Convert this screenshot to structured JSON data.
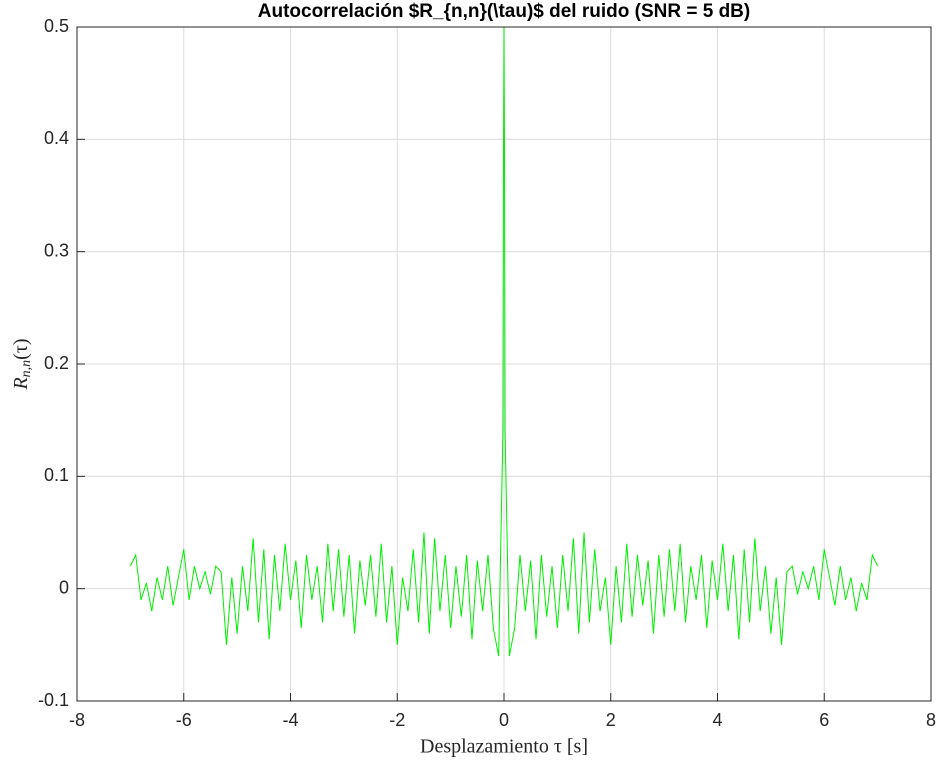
{
  "chart_data": {
    "type": "line",
    "title": "Autocorrelación $R_{n,n}(\\tau)$ del ruido (SNR = 5 dB)",
    "xlabel": "Desplazamiento τ [s]",
    "ylabel": [
      "R",
      "n,n",
      "(τ)"
    ],
    "color": "#00ee00",
    "grid": true,
    "xlim": [
      -8,
      8
    ],
    "xticks": [
      -8,
      -6,
      -4,
      -2,
      0,
      2,
      4,
      6,
      8
    ],
    "ylim": [
      -0.1,
      0.5
    ],
    "yticks": [
      -0.1,
      0,
      0.1,
      0.2,
      0.3,
      0.4,
      0.5
    ],
    "x": [
      -7.0,
      -6.9,
      -6.8,
      -6.7,
      -6.6,
      -6.5,
      -6.4,
      -6.3,
      -6.2,
      -6.1,
      -6.0,
      -5.9,
      -5.8,
      -5.7,
      -5.6,
      -5.5,
      -5.4,
      -5.3,
      -5.2,
      -5.1,
      -5.0,
      -4.9,
      -4.8,
      -4.7,
      -4.6,
      -4.5,
      -4.4,
      -4.3,
      -4.2,
      -4.1,
      -4.0,
      -3.9,
      -3.8,
      -3.7,
      -3.6,
      -3.5,
      -3.4,
      -3.3,
      -3.2,
      -3.1,
      -3.0,
      -2.9,
      -2.8,
      -2.7,
      -2.6,
      -2.5,
      -2.4,
      -2.3,
      -2.2,
      -2.1,
      -2.0,
      -1.9,
      -1.8,
      -1.7,
      -1.6,
      -1.5,
      -1.4,
      -1.3,
      -1.2,
      -1.1,
      -1.0,
      -0.9,
      -0.8,
      -0.7,
      -0.6,
      -0.5,
      -0.4,
      -0.3,
      -0.2,
      -0.1,
      -0.02,
      -0.01,
      0,
      0.01,
      0.02,
      0.1,
      0.2,
      0.3,
      0.4,
      0.5,
      0.6,
      0.7,
      0.8,
      0.9,
      1.0,
      1.1,
      1.2,
      1.3,
      1.4,
      1.5,
      1.6,
      1.7,
      1.8,
      1.9,
      2.0,
      2.1,
      2.2,
      2.3,
      2.4,
      2.5,
      2.6,
      2.7,
      2.8,
      2.9,
      3.0,
      3.1,
      3.2,
      3.3,
      3.4,
      3.5,
      3.6,
      3.7,
      3.8,
      3.9,
      4.0,
      4.1,
      4.2,
      4.3,
      4.4,
      4.5,
      4.6,
      4.7,
      4.8,
      4.9,
      5.0,
      5.1,
      5.2,
      5.3,
      5.4,
      5.5,
      5.6,
      5.7,
      5.8,
      5.9,
      6.0,
      6.1,
      6.2,
      6.3,
      6.4,
      6.5,
      6.6,
      6.7,
      6.8,
      6.9,
      7.0
    ],
    "values": [
      0.02,
      0.03,
      -0.01,
      0.005,
      -0.02,
      0.01,
      -0.01,
      0.02,
      -0.015,
      0.01,
      0.035,
      -0.01,
      0.02,
      0.0,
      0.015,
      -0.005,
      0.02,
      0.015,
      -0.05,
      0.01,
      -0.04,
      0.02,
      -0.02,
      0.045,
      -0.03,
      0.035,
      -0.045,
      0.03,
      -0.02,
      0.04,
      -0.01,
      0.025,
      -0.035,
      0.03,
      -0.01,
      0.02,
      -0.03,
      0.04,
      -0.02,
      0.035,
      -0.025,
      0.03,
      -0.04,
      0.025,
      -0.015,
      0.03,
      -0.025,
      0.04,
      -0.03,
      0.02,
      -0.05,
      0.01,
      -0.02,
      0.035,
      -0.03,
      0.05,
      -0.04,
      0.045,
      -0.02,
      0.03,
      -0.035,
      0.02,
      -0.025,
      0.03,
      -0.045,
      0.025,
      -0.02,
      0.03,
      -0.035,
      -0.06,
      0.14,
      0.38,
      0.5,
      0.38,
      0.14,
      -0.06,
      -0.035,
      0.03,
      -0.02,
      0.025,
      -0.045,
      0.03,
      -0.025,
      0.02,
      -0.035,
      0.03,
      -0.02,
      0.045,
      -0.04,
      0.05,
      -0.03,
      0.035,
      -0.02,
      0.01,
      -0.05,
      0.02,
      -0.03,
      0.04,
      -0.025,
      0.03,
      -0.015,
      0.025,
      -0.04,
      0.03,
      -0.025,
      0.035,
      -0.02,
      0.04,
      -0.03,
      0.02,
      -0.01,
      0.03,
      -0.035,
      0.025,
      -0.01,
      0.04,
      -0.02,
      0.03,
      -0.045,
      0.035,
      -0.03,
      0.045,
      -0.02,
      0.02,
      -0.04,
      0.01,
      -0.05,
      0.015,
      0.02,
      -0.005,
      0.015,
      0.0,
      0.02,
      -0.01,
      0.035,
      0.01,
      -0.015,
      0.02,
      -0.01,
      0.01,
      -0.02,
      0.005,
      -0.01,
      0.03,
      0.02
    ]
  }
}
